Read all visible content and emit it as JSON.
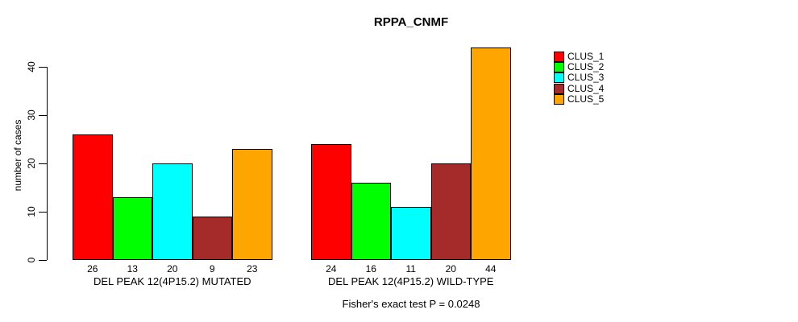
{
  "title": "RPPA_CNMF",
  "footnote": "Fisher's exact test P = 0.0248",
  "y_axis": {
    "label": "number of cases",
    "ticks": [
      0,
      10,
      20,
      30,
      40
    ]
  },
  "chart_data": {
    "type": "bar",
    "title": "RPPA_CNMF",
    "xlabel": "",
    "ylabel": "number of cases",
    "ylim": [
      0,
      44
    ],
    "yticks": [
      0,
      10,
      20,
      30,
      40
    ],
    "grid": false,
    "legend_position": "right",
    "bar_value_labels": true,
    "series": [
      {
        "name": "CLUS_1",
        "color": "#ff0000"
      },
      {
        "name": "CLUS_2",
        "color": "#00ff00"
      },
      {
        "name": "CLUS_3",
        "color": "#00ffff"
      },
      {
        "name": "CLUS_4",
        "color": "#a52a2a"
      },
      {
        "name": "CLUS_5",
        "color": "#ffa500"
      }
    ],
    "groups": [
      {
        "label": "DEL PEAK 12(4P15.2) MUTATED",
        "values": [
          26,
          13,
          20,
          9,
          23
        ]
      },
      {
        "label": "DEL PEAK 12(4P15.2) WILD-TYPE",
        "values": [
          24,
          16,
          11,
          20,
          44
        ]
      }
    ],
    "annotation": "Fisher's exact test P = 0.0248"
  }
}
